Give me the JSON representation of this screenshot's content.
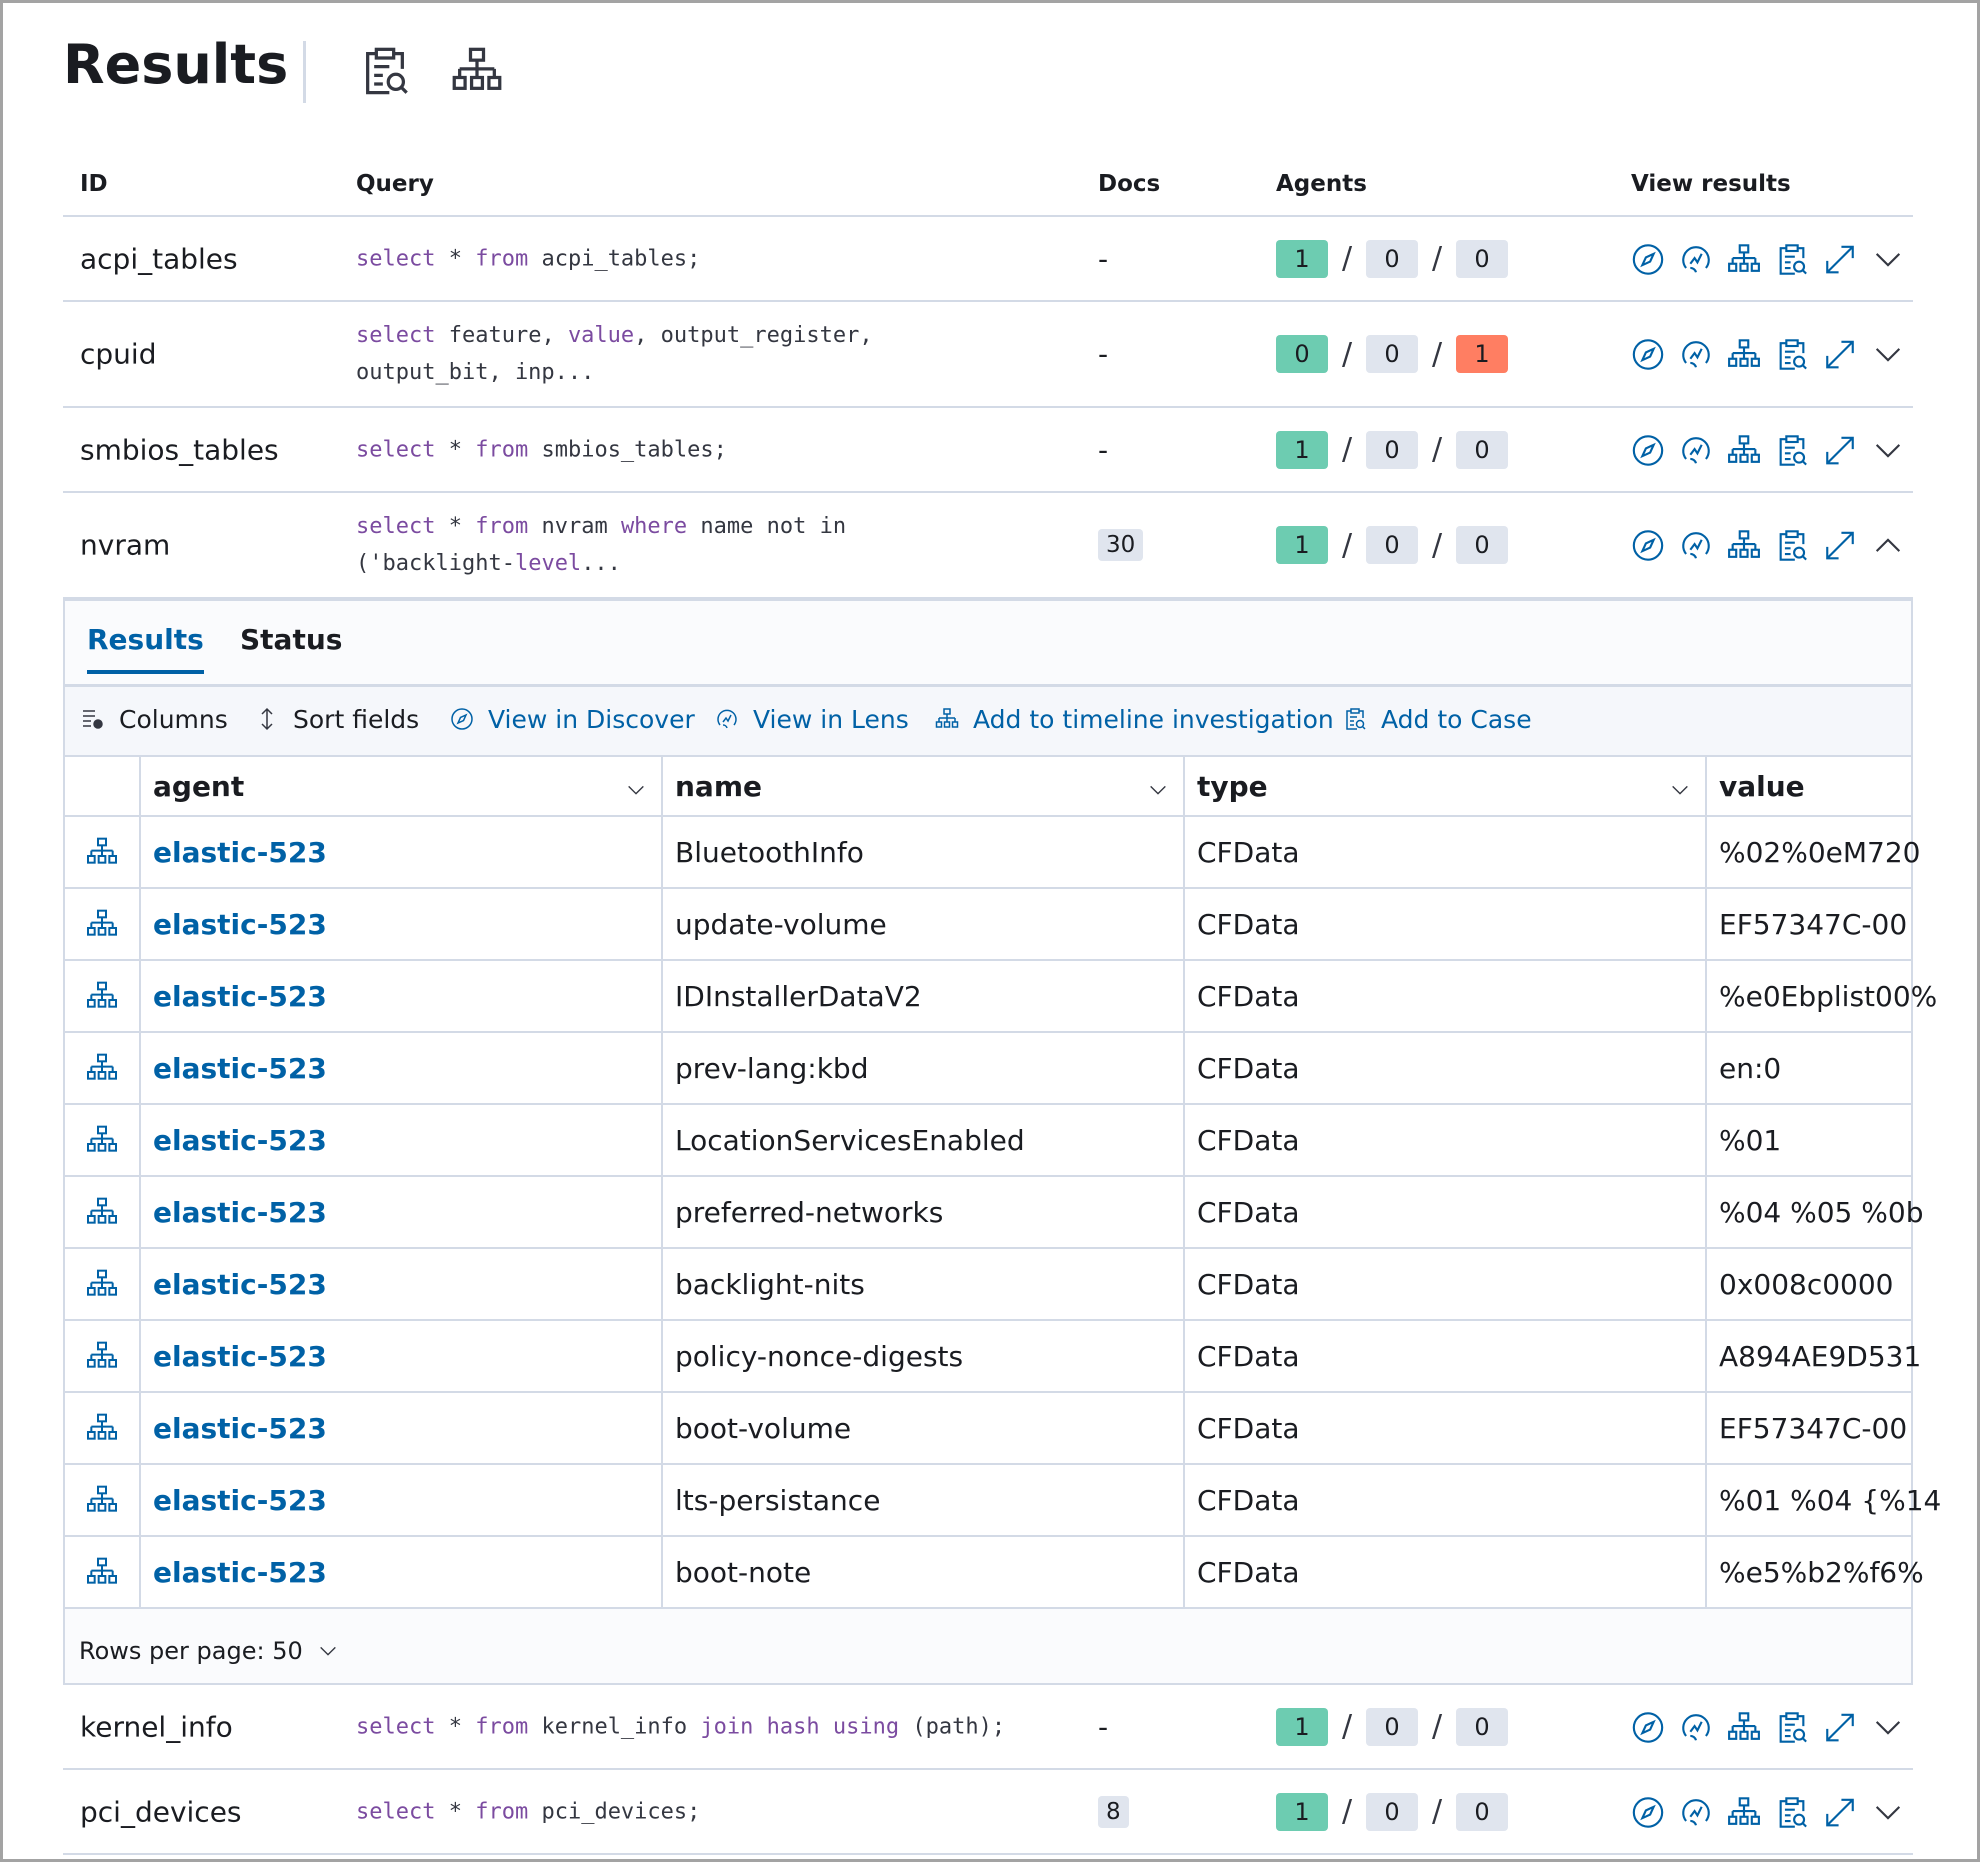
{
  "header": {
    "title": "Results"
  },
  "table": {
    "columns": [
      "ID",
      "Query",
      "Docs",
      "Agents",
      "View results"
    ],
    "agents_separator": "/",
    "rows": [
      {
        "id": "acpi_tables",
        "query": [
          [
            {
              "keyword": "select"
            },
            {
              "text": " * "
            },
            {
              "keyword": "from"
            },
            {
              "text": " acpi_tables;"
            }
          ]
        ],
        "docs": "-",
        "agents": [
          1,
          0,
          0
        ],
        "expanded": false
      },
      {
        "id": "cpuid",
        "query": [
          [
            {
              "keyword": "select"
            },
            {
              "text": " feature, "
            },
            {
              "keyword": "value"
            },
            {
              "text": ", output_register,"
            }
          ],
          [
            {
              "text": "output_bit, inp..."
            }
          ]
        ],
        "docs": "-",
        "agents": [
          0,
          0,
          1
        ],
        "expanded": false
      },
      {
        "id": "smbios_tables",
        "query": [
          [
            {
              "keyword": "select"
            },
            {
              "text": " * "
            },
            {
              "keyword": "from"
            },
            {
              "text": " smbios_tables;"
            }
          ]
        ],
        "docs": "-",
        "agents": [
          1,
          0,
          0
        ],
        "expanded": false
      },
      {
        "id": "nvram",
        "query": [
          [
            {
              "keyword": "select"
            },
            {
              "text": " * "
            },
            {
              "keyword": "from"
            },
            {
              "text": " nvram "
            },
            {
              "keyword": "where"
            },
            {
              "text": " name not in"
            }
          ],
          [
            {
              "text": "('backlight-"
            },
            {
              "keyword": "level"
            },
            {
              "text": "..."
            }
          ]
        ],
        "docs": 30,
        "agents": [
          1,
          0,
          0
        ],
        "expanded": true
      },
      {
        "id": "kernel_info",
        "query": [
          [
            {
              "keyword": "select"
            },
            {
              "text": " * "
            },
            {
              "keyword": "from"
            },
            {
              "text": " kernel_info "
            },
            {
              "keyword": "join"
            },
            {
              "text": " "
            },
            {
              "keyword": "hash"
            },
            {
              "text": " "
            },
            {
              "keyword": "using"
            },
            {
              "text": " (path);"
            }
          ]
        ],
        "docs": "-",
        "agents": [
          1,
          0,
          0
        ],
        "expanded": false
      },
      {
        "id": "pci_devices",
        "query": [
          [
            {
              "keyword": "select"
            },
            {
              "text": " * "
            },
            {
              "keyword": "from"
            },
            {
              "text": " pci_devices;"
            }
          ]
        ],
        "docs": 8,
        "agents": [
          1,
          0,
          0
        ],
        "expanded": false
      }
    ]
  },
  "expanded": {
    "tabs": [
      "Results",
      "Status"
    ],
    "toolbar": [
      "Columns",
      "Sort fields",
      "View in Discover",
      "View in Lens",
      "Add to timeline investigation",
      "Add to Case"
    ],
    "grid": {
      "columns": [
        "agent",
        "name",
        "type",
        "value"
      ],
      "rows": [
        [
          "elastic-523",
          "BluetoothInfo",
          "CFData",
          "%02%0eM720"
        ],
        [
          "elastic-523",
          "update-volume",
          "CFData",
          "EF57347C-00"
        ],
        [
          "elastic-523",
          "IDInstallerDataV2",
          "CFData",
          "%e0Ebplist00%"
        ],
        [
          "elastic-523",
          "prev-lang:kbd",
          "CFData",
          "en:0"
        ],
        [
          "elastic-523",
          "LocationServicesEnabled",
          "CFData",
          "%01"
        ],
        [
          "elastic-523",
          "preferred-networks",
          "CFData",
          "%04 %05 %0b"
        ],
        [
          "elastic-523",
          "backlight-nits",
          "CFData",
          "0x008c0000"
        ],
        [
          "elastic-523",
          "policy-nonce-digests",
          "CFData",
          "A894AE9D531"
        ],
        [
          "elastic-523",
          "boot-volume",
          "CFData",
          "EF57347C-00"
        ],
        [
          "elastic-523",
          "lts-persistance",
          "CFData",
          "%01 %04 {%14"
        ],
        [
          "elastic-523",
          "boot-note",
          "CFData",
          "%e5%b2%f6%"
        ]
      ]
    },
    "footer": "Rows per page: 50"
  }
}
